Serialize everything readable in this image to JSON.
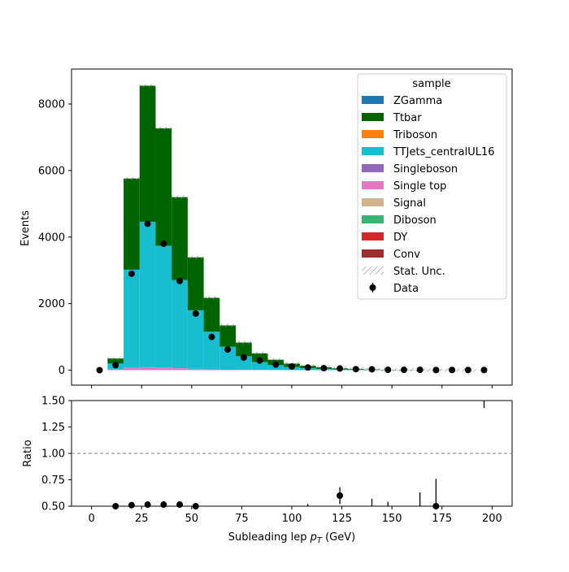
{
  "chart_data": {
    "type": "bar",
    "subtype": "stacked-histogram-with-ratio",
    "xlabel_main": "Subleading lep ",
    "xlabel_sym": "p",
    "xlabel_sub": "T",
    "xlabel_unit": " (GeV)",
    "ylabel_top": "Events",
    "ylabel_bottom": "Ratio",
    "xlim": [
      -10,
      210
    ],
    "ylim_top": [
      -450,
      9050
    ],
    "ylim_bottom": [
      0.5,
      1.5
    ],
    "x_ticks": [
      0,
      25,
      50,
      75,
      100,
      125,
      150,
      175,
      200
    ],
    "x_tick_labels": [
      "0",
      "25",
      "50",
      "75",
      "100",
      "125",
      "150",
      "175",
      "200"
    ],
    "y_ticks_top": [
      0,
      2000,
      4000,
      6000,
      8000
    ],
    "y_tick_labels_top": [
      "0",
      "2000",
      "4000",
      "6000",
      "8000"
    ],
    "y_ticks_bottom": [
      0.5,
      0.75,
      1.0,
      1.25,
      1.5
    ],
    "y_tick_labels_bottom": [
      "0.50",
      "0.75",
      "1.00",
      "1.25",
      "1.50"
    ],
    "ratio_reference": 1.0,
    "bin_edges": [
      0,
      8,
      16,
      24,
      32,
      40,
      48,
      56,
      64,
      72,
      80,
      88,
      96,
      104,
      112,
      120,
      128,
      136,
      144,
      152,
      160,
      168,
      176,
      184,
      192,
      200
    ],
    "legend_title": "sample",
    "legend_position": "top-right",
    "series": [
      {
        "name": "ZGamma",
        "color": "#1f77b4",
        "values": [
          0,
          0,
          0,
          0,
          0,
          0,
          0,
          0,
          0,
          0,
          0,
          0,
          0,
          0,
          0,
          0,
          0,
          0,
          0,
          0,
          0,
          0,
          0,
          0,
          0
        ]
      },
      {
        "name": "Ttbar",
        "color": "#006400",
        "values": [
          0,
          150,
          2740,
          4090,
          3530,
          2490,
          1590,
          1020,
          640,
          410,
          260,
          160,
          100,
          70,
          45,
          30,
          20,
          12,
          8,
          5,
          3,
          2,
          1,
          1,
          0
        ]
      },
      {
        "name": "Triboson",
        "color": "#ff7f0e",
        "values": [
          0,
          0,
          0,
          0,
          0,
          0,
          0,
          0,
          0,
          0,
          0,
          0,
          0,
          0,
          0,
          0,
          0,
          0,
          0,
          0,
          0,
          0,
          0,
          0,
          0
        ]
      },
      {
        "name": "TTJets_centralUL16",
        "color": "#17becf",
        "values": [
          0,
          180,
          2950,
          4370,
          3660,
          2650,
          1760,
          1130,
          690,
          410,
          240,
          150,
          95,
          60,
          40,
          25,
          15,
          10,
          6,
          4,
          2,
          1,
          1,
          0,
          0
        ]
      },
      {
        "name": "Singleboson",
        "color": "#9467bd",
        "values": [
          0,
          0,
          0,
          0,
          0,
          0,
          0,
          0,
          0,
          0,
          0,
          0,
          0,
          0,
          0,
          0,
          0,
          0,
          0,
          0,
          0,
          0,
          0,
          0,
          0
        ]
      },
      {
        "name": "Single top",
        "color": "#e377c2",
        "values": [
          0,
          20,
          70,
          90,
          80,
          60,
          40,
          25,
          15,
          10,
          6,
          4,
          2,
          1,
          1,
          0,
          0,
          0,
          0,
          0,
          0,
          0,
          0,
          0,
          0
        ]
      },
      {
        "name": "Signal",
        "color": "#d2b48c",
        "values": [
          0,
          0,
          0,
          0,
          0,
          0,
          0,
          0,
          0,
          0,
          0,
          0,
          0,
          0,
          0,
          0,
          0,
          0,
          0,
          0,
          0,
          0,
          0,
          0,
          0
        ]
      },
      {
        "name": "Diboson",
        "color": "#3cb371",
        "values": [
          0,
          0,
          0,
          0,
          0,
          0,
          0,
          0,
          0,
          0,
          0,
          0,
          0,
          0,
          0,
          0,
          0,
          0,
          0,
          0,
          0,
          0,
          0,
          0,
          0
        ]
      },
      {
        "name": "DY",
        "color": "#d62728",
        "values": [
          0,
          0,
          0,
          0,
          0,
          0,
          0,
          0,
          0,
          0,
          0,
          0,
          0,
          0,
          0,
          0,
          0,
          0,
          0,
          0,
          0,
          0,
          0,
          0,
          0
        ]
      },
      {
        "name": "Conv",
        "color": "#a52a2a",
        "values": [
          0,
          0,
          0,
          0,
          0,
          0,
          0,
          0,
          0,
          0,
          0,
          0,
          0,
          0,
          0,
          0,
          0,
          0,
          0,
          0,
          0,
          0,
          0,
          0,
          0
        ]
      }
    ],
    "uncertainty_label": "Stat. Unc.",
    "data_label": "Data",
    "data_x": [
      4,
      12,
      20,
      28,
      36,
      44,
      52,
      60,
      68,
      76,
      84,
      92,
      100,
      108,
      116,
      124,
      132,
      140,
      148,
      156,
      164,
      172,
      180,
      188,
      196
    ],
    "data_y": [
      0,
      150,
      2900,
      4400,
      3800,
      2680,
      1700,
      1000,
      620,
      380,
      290,
      170,
      110,
      80,
      60,
      50,
      30,
      25,
      10,
      10,
      10,
      5,
      5,
      5,
      5
    ],
    "ratio_points": [
      {
        "x": 12,
        "y": 0.5,
        "err": 0.03
      },
      {
        "x": 20,
        "y": 0.51,
        "err": 0.01
      },
      {
        "x": 28,
        "y": 0.515,
        "err": 0.01
      },
      {
        "x": 36,
        "y": 0.515,
        "err": 0.01
      },
      {
        "x": 44,
        "y": 0.515,
        "err": 0.01
      },
      {
        "x": 52,
        "y": 0.5,
        "err": 0.01
      },
      {
        "x": 124,
        "y": 0.6,
        "err": 0.08
      },
      {
        "x": 172,
        "y": 0.5,
        "err": 0.26
      }
    ],
    "ratio_bars": [
      {
        "x": 108,
        "y1": 0.5,
        "y2": 0.52
      },
      {
        "x": 140,
        "y1": 0.5,
        "y2": 0.57
      },
      {
        "x": 148,
        "y1": 0.5,
        "y2": 0.54
      },
      {
        "x": 164,
        "y1": 0.5,
        "y2": 0.63
      },
      {
        "x": 196,
        "y1": 1.43,
        "y2": 1.5
      }
    ]
  }
}
